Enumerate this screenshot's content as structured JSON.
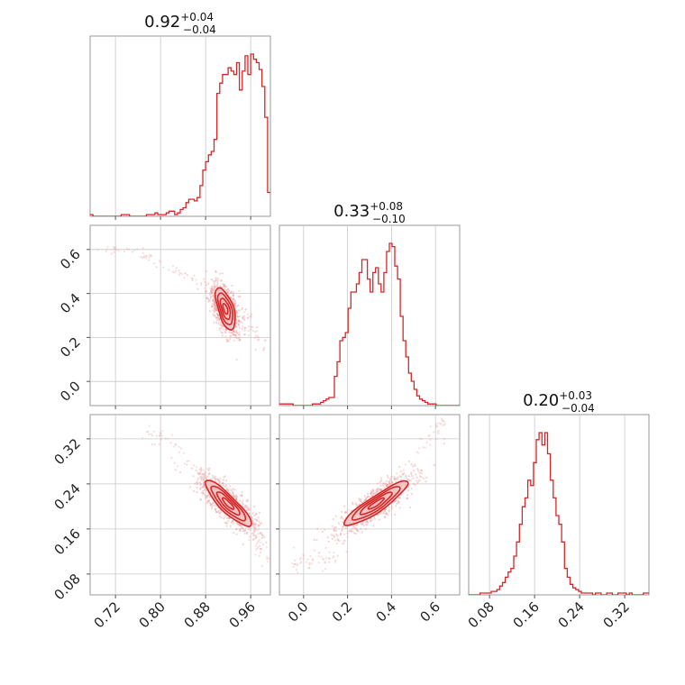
{
  "colors": {
    "accent": "#d62728",
    "sample": "#e8a0a0",
    "contour_fill": "#f3c4c4",
    "grid": "#c8c8c8",
    "frame": "#999999"
  },
  "chart_data": {
    "type": "corner",
    "parameters": [
      {
        "id": "p0",
        "title": {
          "value": "0.92",
          "plus": "+0.04",
          "minus": "−0.04"
        },
        "range": [
          0.675,
          0.995
        ],
        "ticks": [
          {
            "value": 0.72,
            "label": "0.72"
          },
          {
            "value": 0.8,
            "label": "0.80"
          },
          {
            "value": 0.88,
            "label": "0.88"
          },
          {
            "value": 0.96,
            "label": "0.96"
          }
        ],
        "histogram": {
          "edges_start": 0.675,
          "bin_width": 0.005,
          "counts": [
            1,
            0,
            0,
            0,
            0,
            0,
            0,
            0,
            0,
            0,
            0,
            1,
            1,
            1,
            0,
            0,
            0,
            0,
            0,
            0,
            1,
            1,
            1,
            2,
            1,
            1,
            1,
            2,
            3,
            3,
            1,
            2,
            4,
            5,
            8,
            10,
            10,
            9,
            11,
            18,
            27,
            32,
            36,
            38,
            45,
            72,
            78,
            83,
            83,
            87,
            85,
            83,
            90,
            74,
            85,
            94,
            83,
            95,
            92,
            90,
            86,
            76,
            58,
            14
          ]
        }
      },
      {
        "id": "p1",
        "title": {
          "value": "0.33",
          "plus": "+0.08",
          "minus": "−0.10"
        },
        "range": [
          -0.11,
          0.71
        ],
        "ticks": [
          {
            "value": 0.0,
            "label": "0.0"
          },
          {
            "value": 0.2,
            "label": "0.2"
          },
          {
            "value": 0.4,
            "label": "0.4"
          },
          {
            "value": 0.6,
            "label": "0.6"
          }
        ],
        "histogram": {
          "edges_start": -0.11,
          "bin_width": 0.0125,
          "counts": [
            1,
            1,
            1,
            1,
            1,
            0,
            0,
            0,
            0,
            0,
            0,
            0,
            1,
            1,
            1,
            2,
            3,
            4,
            5,
            5,
            18,
            27,
            40,
            42,
            45,
            60,
            70,
            70,
            75,
            82,
            90,
            90,
            78,
            70,
            82,
            85,
            75,
            70,
            82,
            95,
            100,
            98,
            86,
            78,
            55,
            40,
            30,
            20,
            15,
            10,
            6,
            4,
            3,
            2,
            1,
            1,
            1,
            0,
            0,
            0,
            0,
            0,
            0,
            0,
            0,
            0
          ]
        }
      },
      {
        "id": "p2",
        "title": {
          "value": "0.20",
          "plus": "+0.03",
          "minus": "−0.04"
        },
        "range": [
          0.043,
          0.363
        ],
        "ticks": [
          {
            "value": 0.08,
            "label": "0.08"
          },
          {
            "value": 0.16,
            "label": "0.16"
          },
          {
            "value": 0.24,
            "label": "0.24"
          },
          {
            "value": 0.32,
            "label": "0.32"
          }
        ],
        "histogram": {
          "edges_start": 0.043,
          "bin_width": 0.005,
          "counts": [
            0,
            0,
            0,
            0,
            1,
            1,
            1,
            1,
            2,
            2,
            3,
            5,
            7,
            10,
            13,
            15,
            22,
            30,
            40,
            50,
            55,
            65,
            62,
            75,
            88,
            92,
            85,
            92,
            80,
            65,
            55,
            45,
            40,
            30,
            15,
            10,
            6,
            4,
            3,
            2,
            1,
            1,
            1,
            1,
            0,
            1,
            1,
            0,
            0,
            1,
            1,
            0,
            0,
            1,
            1,
            1,
            0,
            1,
            0,
            0,
            0,
            0,
            1,
            1
          ]
        }
      }
    ],
    "pairs": [
      {
        "x_param": "p0",
        "y_param": "p1",
        "mean": [
          0.915,
          0.33
        ],
        "direction": [
          -0.11,
          1.0
        ],
        "sd_major": 0.048,
        "sd_minor": 0.007,
        "ridge": [
          [
            0.7,
            0.6
          ],
          [
            0.76,
            0.6
          ],
          [
            0.8,
            0.53
          ],
          [
            0.86,
            0.47
          ],
          [
            0.91,
            0.38
          ],
          [
            0.95,
            0.3
          ],
          [
            0.985,
            0.13
          ]
        ]
      },
      {
        "x_param": "p0",
        "y_param": "p2",
        "mean": [
          0.92,
          0.205
        ],
        "direction": [
          1.0,
          -1.0
        ],
        "sd_major": 0.028,
        "sd_minor": 0.007,
        "ridge": [
          [
            0.77,
            0.34
          ],
          [
            0.82,
            0.31
          ],
          [
            0.87,
            0.26
          ],
          [
            0.93,
            0.21
          ],
          [
            0.965,
            0.16
          ],
          [
            0.985,
            0.1
          ]
        ]
      },
      {
        "x_param": "p1",
        "y_param": "p2",
        "mean": [
          0.33,
          0.205
        ],
        "direction": [
          1.0,
          0.25
        ],
        "sd_major": 0.075,
        "sd_minor": 0.008,
        "ridge": [
          [
            -0.05,
            0.1
          ],
          [
            0.08,
            0.1
          ],
          [
            0.15,
            0.12
          ],
          [
            0.3,
            0.19
          ],
          [
            0.45,
            0.26
          ],
          [
            0.6,
            0.33
          ],
          [
            0.65,
            0.36
          ]
        ]
      }
    ],
    "contour_levels": [
      0.5,
      1.0,
      1.5,
      2.0
    ],
    "n_samples": 900
  }
}
